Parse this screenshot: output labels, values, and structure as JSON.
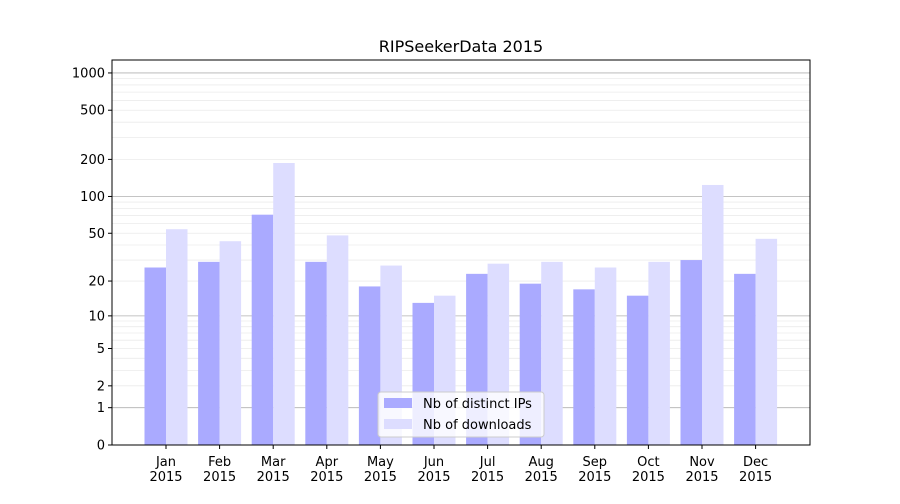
{
  "chart_data": {
    "type": "bar",
    "title": "RIPSeekerData 2015",
    "xlabel": "",
    "ylabel": "",
    "y_scale": "log(1+y)",
    "ylim": [
      0,
      1270
    ],
    "yticks": [
      0,
      1,
      2,
      5,
      10,
      20,
      50,
      100,
      200,
      500,
      1000
    ],
    "grid": true,
    "legend_placement": "lower center",
    "categories": [
      "Jan\n2015",
      "Feb\n2015",
      "Mar\n2015",
      "Apr\n2015",
      "May\n2015",
      "Jun\n2015",
      "Jul\n2015",
      "Aug\n2015",
      "Sep\n2015",
      "Oct\n2015",
      "Nov\n2015",
      "Dec\n2015"
    ],
    "series": [
      {
        "name": "Nb of distinct IPs",
        "color": "#aaaaff",
        "values": [
          26,
          29,
          71,
          29,
          18,
          13,
          23,
          19,
          17,
          15,
          30,
          23
        ]
      },
      {
        "name": "Nb of downloads",
        "color": "#ddddff",
        "values": [
          54,
          43,
          187,
          48,
          27,
          15,
          28,
          29,
          26,
          29,
          124,
          45
        ]
      }
    ]
  }
}
